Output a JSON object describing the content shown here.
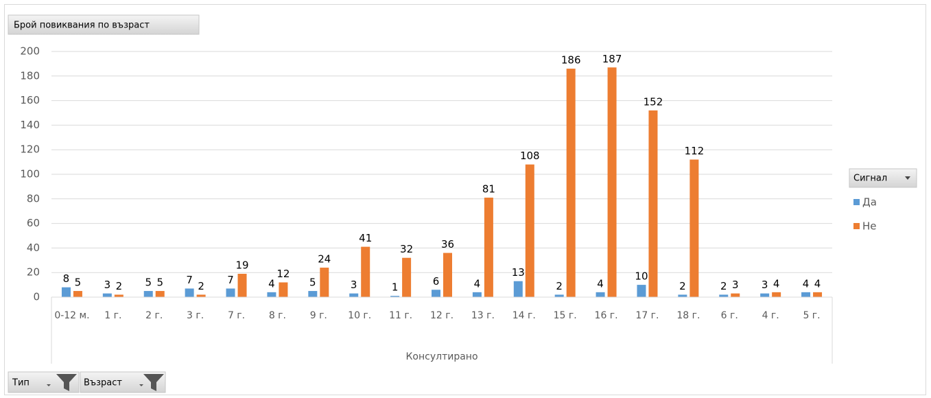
{
  "chart_data": {
    "type": "bar",
    "title": "Брой повиквания по възраст",
    "categories": [
      "0-12 м.",
      "1 г.",
      "2 г.",
      "3 г.",
      "7 г.",
      "8 г.",
      "9 г.",
      "10 г.",
      "11 г.",
      "12 г.",
      "13 г.",
      "14 г.",
      "15 г.",
      "16 г.",
      "17 г.",
      "18 г.",
      "6 г.",
      "4 г.",
      "5 г."
    ],
    "x_group_label": "Консултирано",
    "legend_title": "Сигнал",
    "legend_position": "right",
    "series": [
      {
        "name": "Да",
        "color": "#5b9bd5",
        "values": [
          8,
          3,
          5,
          7,
          7,
          4,
          5,
          3,
          1,
          6,
          4,
          13,
          2,
          4,
          10,
          2,
          2,
          3,
          4
        ]
      },
      {
        "name": "Не",
        "color": "#ed7d31",
        "values": [
          5,
          2,
          5,
          2,
          19,
          12,
          24,
          41,
          32,
          36,
          81,
          108,
          186,
          187,
          152,
          112,
          3,
          4,
          4
        ]
      }
    ],
    "ylim": [
      0,
      200
    ],
    "yticks": [
      0,
      20,
      40,
      60,
      80,
      100,
      120,
      140,
      160,
      180,
      200
    ],
    "grid": true,
    "filters": [
      "Тип",
      "Възраст"
    ]
  }
}
